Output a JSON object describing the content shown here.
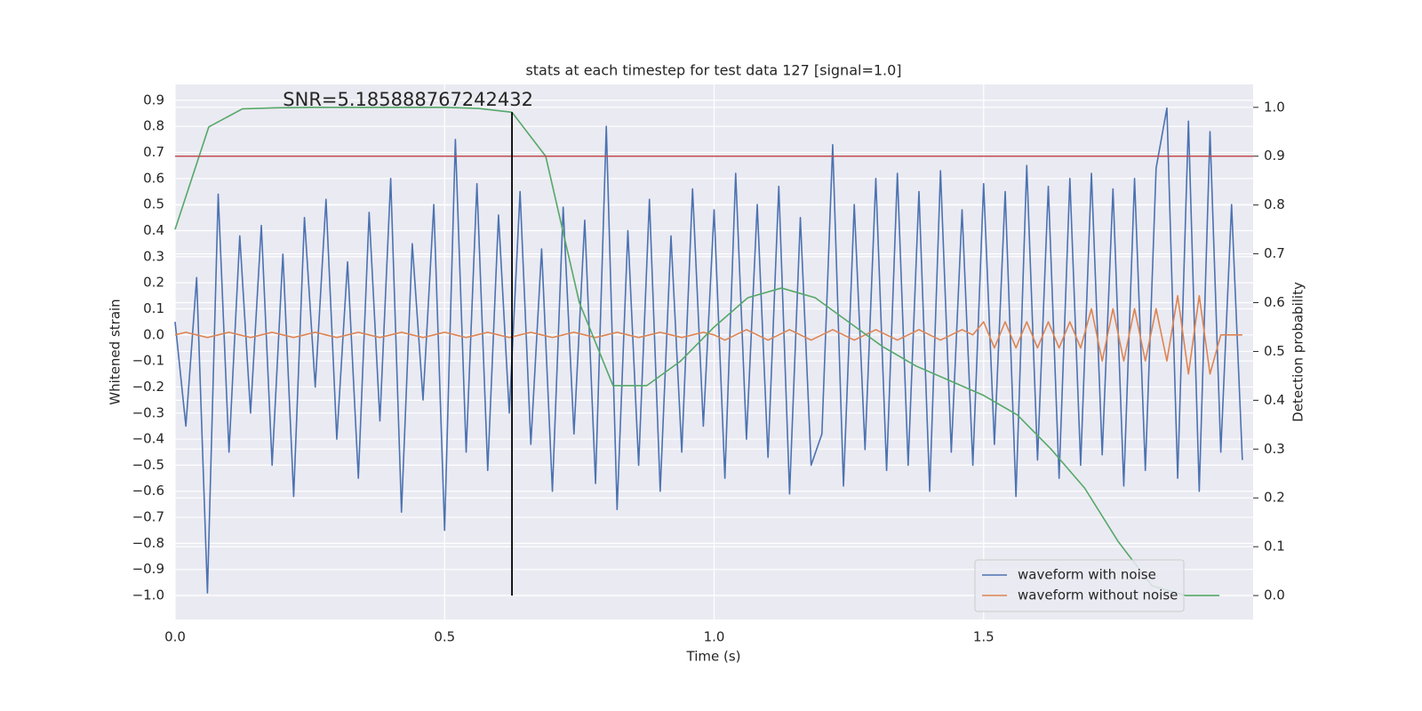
{
  "chart_data": {
    "type": "line",
    "title": "stats at each timestep for test data 127 [signal=1.0]",
    "xlabel": "Time (s)",
    "ylabel": "Whitened strain",
    "y2label": "Detection probability",
    "xlim": [
      0,
      2.0
    ],
    "ylim": [
      -1.092,
      0.961
    ],
    "y2lim": [
      -0.049,
      1.047
    ],
    "xticks": [
      {
        "value": 0,
        "label": "0.0"
      },
      0.5,
      {
        "value": 1,
        "label": "1.0"
      },
      1.5
    ],
    "yticks": [
      {
        "value": -1.0,
        "label": "−1.0"
      },
      {
        "value": -0.9,
        "label": "−0.9"
      },
      {
        "value": -0.8,
        "label": "−0.8"
      },
      {
        "value": -0.7,
        "label": "−0.7"
      },
      {
        "value": -0.6,
        "label": "−0.6"
      },
      {
        "value": -0.5,
        "label": "−0.5"
      },
      {
        "value": -0.4,
        "label": "−0.4"
      },
      {
        "value": -0.3,
        "label": "−0.3"
      },
      {
        "value": -0.2,
        "label": "−0.2"
      },
      {
        "value": -0.1,
        "label": "−0.1"
      },
      {
        "value": 0,
        "label": "0.0"
      },
      0.1,
      0.2,
      0.3,
      0.4,
      0.5,
      0.6,
      0.7,
      0.8,
      0.9
    ],
    "y2ticks": [
      {
        "value": 0,
        "label": "0.0"
      },
      0.1,
      0.2,
      0.3,
      0.4,
      0.5,
      0.6,
      0.7,
      0.8,
      0.9,
      {
        "value": 1,
        "label": "1.0"
      }
    ],
    "grid": true,
    "legend": "lower right",
    "x": [
      0,
      0.02,
      0.04,
      0.06,
      0.08,
      0.1,
      0.12,
      0.14,
      0.16,
      0.18,
      0.2,
      0.22,
      0.24,
      0.26,
      0.28,
      0.3,
      0.32,
      0.34,
      0.36,
      0.38,
      0.4,
      0.42,
      0.44,
      0.46,
      0.48,
      0.5,
      0.52,
      0.54,
      0.56,
      0.58,
      0.6,
      0.62,
      0.64,
      0.66,
      0.68,
      0.7,
      0.72,
      0.74,
      0.76,
      0.78,
      0.8,
      0.82,
      0.84,
      0.86,
      0.88,
      0.9,
      0.92,
      0.94,
      0.96,
      0.98,
      1.0,
      1.02,
      1.04,
      1.06,
      1.08,
      1.1,
      1.12,
      1.14,
      1.16,
      1.18,
      1.2,
      1.22,
      1.24,
      1.26,
      1.28,
      1.3,
      1.32,
      1.34,
      1.36,
      1.38,
      1.4,
      1.42,
      1.44,
      1.46,
      1.48,
      1.5,
      1.52,
      1.54,
      1.56,
      1.58,
      1.6,
      1.62,
      1.64,
      1.66,
      1.68,
      1.7,
      1.72,
      1.74,
      1.76,
      1.78,
      1.8,
      1.82,
      1.84,
      1.86,
      1.88,
      1.9,
      1.92,
      1.94,
      1.96,
      1.98
    ],
    "series": [
      {
        "name": "waveform with noise",
        "color": "#4c72b0",
        "values": [
          0.05,
          -0.35,
          0.22,
          -0.99,
          0.54,
          -0.45,
          0.38,
          -0.3,
          0.42,
          -0.5,
          0.31,
          -0.62,
          0.45,
          -0.2,
          0.52,
          -0.4,
          0.28,
          -0.55,
          0.47,
          -0.33,
          0.6,
          -0.68,
          0.35,
          -0.25,
          0.5,
          -0.75,
          0.75,
          -0.45,
          0.58,
          -0.52,
          0.46,
          -0.3,
          0.55,
          -0.42,
          0.33,
          -0.6,
          0.49,
          -0.38,
          0.44,
          -0.57,
          0.8,
          -0.67,
          0.4,
          -0.5,
          0.52,
          -0.6,
          0.38,
          -0.45,
          0.56,
          -0.35,
          0.48,
          -0.55,
          0.62,
          -0.4,
          0.5,
          -0.47,
          0.57,
          -0.61,
          0.45,
          -0.5,
          -0.38,
          0.73,
          -0.58,
          0.5,
          -0.44,
          0.6,
          -0.52,
          0.62,
          -0.5,
          0.55,
          -0.6,
          0.63,
          -0.45,
          0.48,
          -0.5,
          0.58,
          -0.42,
          0.55,
          -0.62,
          0.65,
          -0.48,
          0.57,
          -0.55,
          0.6,
          -0.5,
          0.62,
          -0.46,
          0.56,
          -0.58,
          0.6,
          -0.52,
          0.64,
          0.87,
          -0.55,
          0.82,
          -0.6,
          0.78,
          -0.45,
          0.5,
          -0.48
        ]
      },
      {
        "name": "waveform without noise",
        "color": "#dd8452",
        "values": [
          0,
          0.01,
          0,
          -0.01,
          0,
          0.01,
          0,
          -0.01,
          0,
          0.01,
          0,
          -0.01,
          0,
          0.01,
          0,
          -0.01,
          0,
          0.01,
          0,
          -0.01,
          0,
          0.01,
          0,
          -0.01,
          0,
          0.01,
          0,
          -0.01,
          0,
          0.01,
          0,
          -0.01,
          0,
          0.01,
          0,
          -0.01,
          0,
          0.01,
          0,
          -0.01,
          0,
          0.01,
          0,
          -0.01,
          0,
          0.01,
          0,
          -0.01,
          0,
          0.01,
          0,
          -0.02,
          0,
          0.02,
          0,
          -0.02,
          0,
          0.02,
          0,
          -0.02,
          0,
          0.02,
          0,
          -0.02,
          0,
          0.02,
          0,
          -0.02,
          0,
          0.02,
          0,
          -0.02,
          0,
          0.02,
          0,
          0.05,
          -0.05,
          0.05,
          -0.05,
          0.05,
          -0.05,
          0.05,
          -0.05,
          0.05,
          -0.05,
          0.1,
          -0.1,
          0.1,
          -0.1,
          0.1,
          -0.1,
          0.1,
          -0.1,
          0.15,
          -0.15,
          0.15,
          -0.15,
          0,
          0,
          0
        ]
      },
      {
        "color": "#55a868",
        "axis": "y2",
        "x": [
          0,
          0.0625,
          0.125,
          0.1875,
          0.25,
          0.3125,
          0.375,
          0.4375,
          0.5,
          0.5625,
          0.625,
          0.6875,
          0.75,
          0.8125,
          0.875,
          0.9375,
          1.0,
          1.0625,
          1.125,
          1.1875,
          1.25,
          1.3125,
          1.375,
          1.4375,
          1.5,
          1.5625,
          1.625,
          1.6875,
          1.75,
          1.8125,
          1.875,
          1.9375
        ],
        "values": [
          0.75,
          0.96,
          0.997,
          0.999,
          1.0,
          1.0,
          1.0,
          1.0,
          1.0,
          0.998,
          0.99,
          0.9,
          0.6,
          0.43,
          0.43,
          0.48,
          0.55,
          0.61,
          0.63,
          0.61,
          0.56,
          0.51,
          0.47,
          0.44,
          0.41,
          0.37,
          0.3,
          0.22,
          0.11,
          0.02,
          0.0,
          0.0
        ]
      }
    ],
    "hlines": [
      {
        "y": 0.9,
        "axis": "y2",
        "color": "#c44e52"
      }
    ],
    "vlines": [
      {
        "x": 0.625,
        "ymin": 0,
        "ymax": 0.99,
        "axis": "y2",
        "color": "#000000"
      }
    ],
    "annotations": [
      {
        "text": "SNR=5.185888767242432",
        "x": 0.2,
        "y": 0.9
      }
    ]
  }
}
